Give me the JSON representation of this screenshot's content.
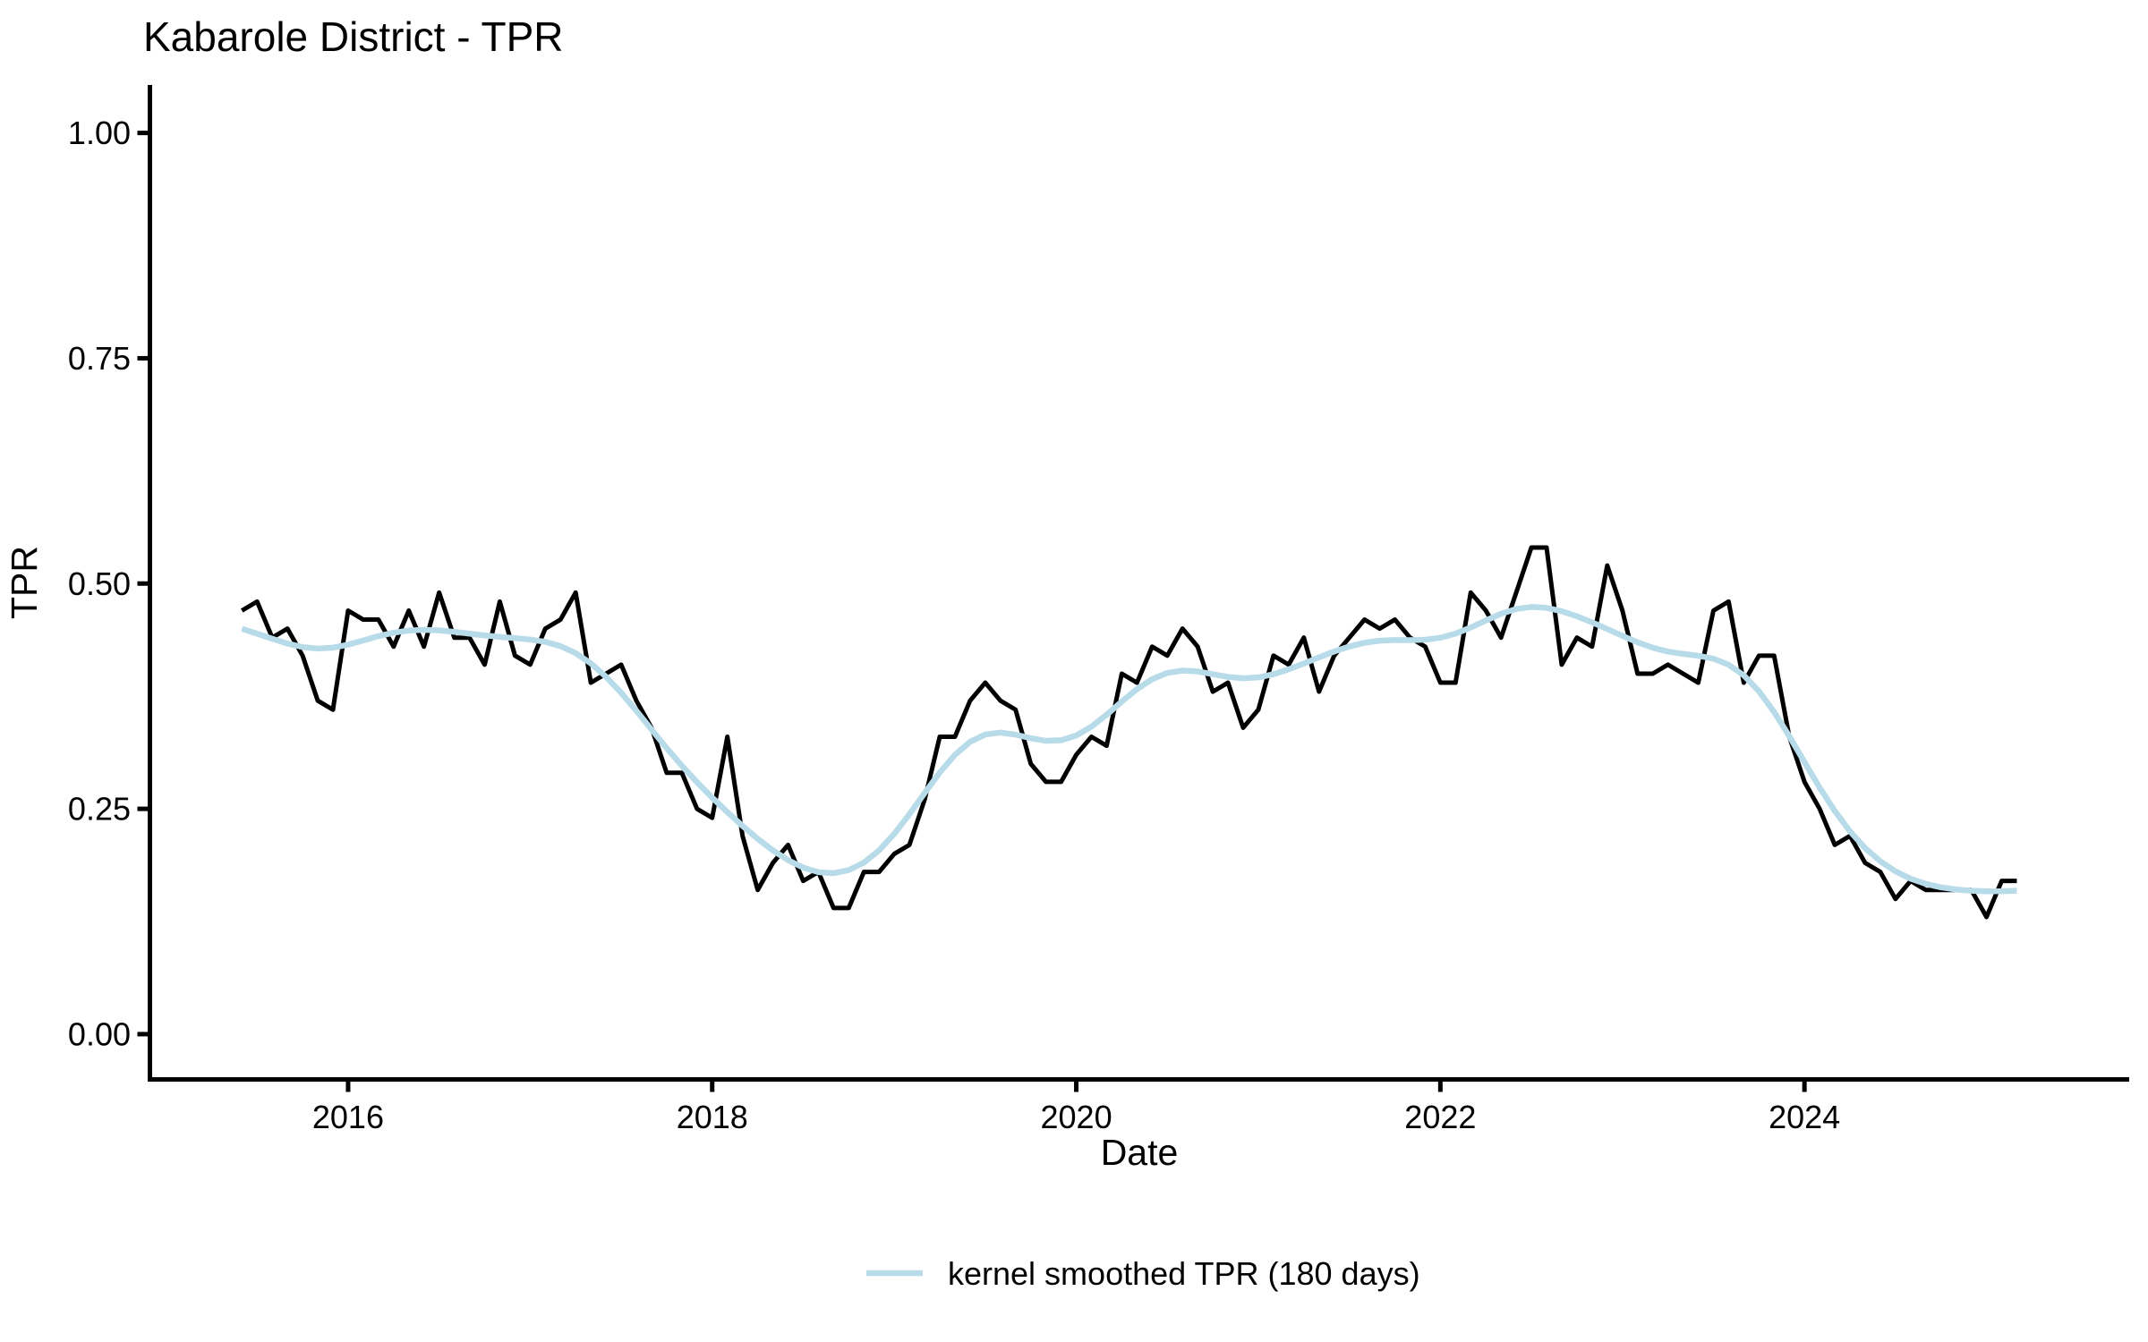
{
  "chart_data": {
    "type": "line",
    "title": "Kabarole District - TPR",
    "xlabel": "Date",
    "ylabel": "TPR",
    "ylim": [
      0,
      1
    ],
    "grid": false,
    "background": "#ffffff",
    "x_ticks": [
      "2016",
      "2018",
      "2020",
      "2022",
      "2024"
    ],
    "y_ticks": [
      {
        "value": 0.0,
        "label": "0.00"
      },
      {
        "value": 0.25,
        "label": "0.25"
      },
      {
        "value": 0.5,
        "label": "0.50"
      },
      {
        "value": 0.75,
        "label": "0.75"
      },
      {
        "value": 1.0,
        "label": "1.00"
      }
    ],
    "x_start_month": "2015-06",
    "x_end_month": "2025-03",
    "x_freq": "monthly",
    "series": [
      {
        "name": "TPR",
        "color": "#000000",
        "values": [
          0.47,
          0.48,
          0.44,
          0.45,
          0.42,
          0.37,
          0.36,
          0.47,
          0.46,
          0.46,
          0.43,
          0.47,
          0.43,
          0.49,
          0.44,
          0.44,
          0.41,
          0.48,
          0.42,
          0.41,
          0.45,
          0.46,
          0.49,
          0.39,
          0.4,
          0.41,
          0.37,
          0.34,
          0.29,
          0.29,
          0.25,
          0.24,
          0.33,
          0.22,
          0.16,
          0.19,
          0.21,
          0.17,
          0.18,
          0.14,
          0.14,
          0.18,
          0.18,
          0.2,
          0.21,
          0.26,
          0.33,
          0.33,
          0.37,
          0.39,
          0.37,
          0.36,
          0.3,
          0.28,
          0.28,
          0.31,
          0.33,
          0.32,
          0.4,
          0.39,
          0.43,
          0.42,
          0.45,
          0.43,
          0.38,
          0.39,
          0.34,
          0.36,
          0.42,
          0.41,
          0.44,
          0.38,
          0.42,
          0.44,
          0.46,
          0.45,
          0.46,
          0.44,
          0.43,
          0.39,
          0.39,
          0.49,
          0.47,
          0.44,
          0.49,
          0.54,
          0.54,
          0.41,
          0.44,
          0.43,
          0.52,
          0.47,
          0.4,
          0.4,
          0.41,
          0.4,
          0.39,
          0.47,
          0.48,
          0.39,
          0.42,
          0.42,
          0.33,
          0.28,
          0.25,
          0.21,
          0.22,
          0.19,
          0.18,
          0.15,
          0.17,
          0.16,
          0.16,
          0.16,
          0.16,
          0.13,
          0.17,
          0.17
        ]
      },
      {
        "name": "kernel smoothed TPR (180 days)",
        "color": "#b7dbe8",
        "derived_from": "TPR",
        "method": "gaussian kernel smooth",
        "bandwidth_days": 180
      }
    ],
    "legend": {
      "position": "bottom-center",
      "entries": [
        {
          "label": "kernel smoothed TPR (180 days)",
          "color": "#b7dbe8"
        }
      ]
    }
  }
}
